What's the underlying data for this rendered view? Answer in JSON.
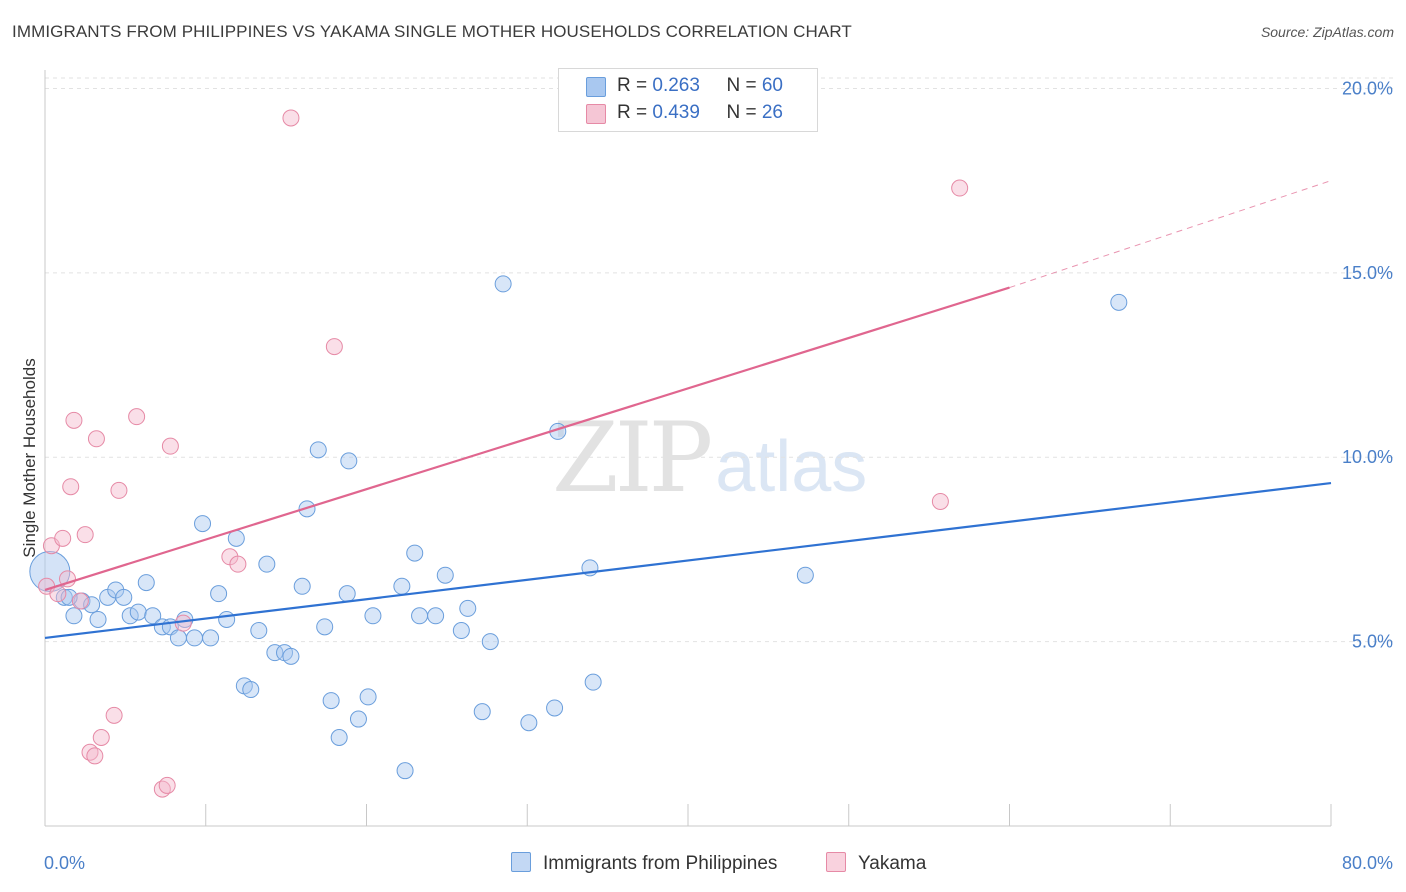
{
  "header": {
    "title": "IMMIGRANTS FROM PHILIPPINES VS YAKAMA SINGLE MOTHER HOUSEHOLDS CORRELATION CHART",
    "source": "Source: ZipAtlas.com"
  },
  "legend": {
    "rows": [
      {
        "r_label": "R = ",
        "r_value": "0.263",
        "n_label": "N = ",
        "n_value": "60",
        "color": "#a9c8f0"
      },
      {
        "r_label": "R = ",
        "r_value": "0.439",
        "n_label": "N = ",
        "n_value": "26",
        "color": "#f5b8cb"
      }
    ]
  },
  "watermark": {
    "zip": "ZIP",
    "atlas": "atlas"
  },
  "chart_data": {
    "type": "scatter",
    "title": "IMMIGRANTS FROM PHILIPPINES VS YAKAMA SINGLE MOTHER HOUSEHOLDS CORRELATION CHART",
    "ylabel": "Single Mother Households",
    "xlabel": "",
    "xlim": [
      0,
      80
    ],
    "ylim": [
      0,
      20.5
    ],
    "x_tick_labels": [
      "0.0%",
      "80.0%"
    ],
    "y_ticks": [
      {
        "value": 5,
        "label": "5.0%"
      },
      {
        "value": 10,
        "label": "10.0%"
      },
      {
        "value": 15,
        "label": "15.0%"
      },
      {
        "value": 20,
        "label": "20.0%"
      }
    ],
    "grid": true,
    "legend_position": "top-center",
    "series": [
      {
        "name": "Immigrants from Philippines",
        "color": "#a9c8f0",
        "stroke": "#6a9edc",
        "line_color": "#2f72d2",
        "trend": [
          [
            0,
            5.1
          ],
          [
            80,
            9.3
          ]
        ],
        "points": [
          [
            0.3,
            6.9
          ],
          [
            1.2,
            6.2
          ],
          [
            1.8,
            5.7
          ],
          [
            2.3,
            6.1
          ],
          [
            2.9,
            6.0
          ],
          [
            3.3,
            5.6
          ],
          [
            3.9,
            6.2
          ],
          [
            4.4,
            6.4
          ],
          [
            4.9,
            6.2
          ],
          [
            5.3,
            5.7
          ],
          [
            5.8,
            5.8
          ],
          [
            6.3,
            6.6
          ],
          [
            6.7,
            5.7
          ],
          [
            7.3,
            5.4
          ],
          [
            7.8,
            5.4
          ],
          [
            8.3,
            5.1
          ],
          [
            8.7,
            5.6
          ],
          [
            9.3,
            5.1
          ],
          [
            9.8,
            8.2
          ],
          [
            10.3,
            5.1
          ],
          [
            10.8,
            6.3
          ],
          [
            11.3,
            5.6
          ],
          [
            11.9,
            7.8
          ],
          [
            12.4,
            3.8
          ],
          [
            12.8,
            3.7
          ],
          [
            13.3,
            5.3
          ],
          [
            13.8,
            7.1
          ],
          [
            14.3,
            4.7
          ],
          [
            14.9,
            4.7
          ],
          [
            15.3,
            4.6
          ],
          [
            16.0,
            6.5
          ],
          [
            16.3,
            8.6
          ],
          [
            17.0,
            10.2
          ],
          [
            17.4,
            5.4
          ],
          [
            17.8,
            3.4
          ],
          [
            18.3,
            2.4
          ],
          [
            18.8,
            6.3
          ],
          [
            18.9,
            9.9
          ],
          [
            19.5,
            2.9
          ],
          [
            20.1,
            3.5
          ],
          [
            20.4,
            5.7
          ],
          [
            22.2,
            6.5
          ],
          [
            22.4,
            1.5
          ],
          [
            23.0,
            7.4
          ],
          [
            23.3,
            5.7
          ],
          [
            24.3,
            5.7
          ],
          [
            24.9,
            6.8
          ],
          [
            25.9,
            5.3
          ],
          [
            26.3,
            5.9
          ],
          [
            27.2,
            3.1
          ],
          [
            27.7,
            5.0
          ],
          [
            28.5,
            14.7
          ],
          [
            30.1,
            2.8
          ],
          [
            31.7,
            3.2
          ],
          [
            31.9,
            10.7
          ],
          [
            33.9,
            7.0
          ],
          [
            34.1,
            3.9
          ],
          [
            47.3,
            6.8
          ],
          [
            66.8,
            14.2
          ],
          [
            1.5,
            6.2
          ]
        ]
      },
      {
        "name": "Yakama",
        "color": "#f5b8cb",
        "stroke": "#e68aa6",
        "line_color": "#e0668f",
        "trend": [
          [
            0,
            6.4
          ],
          [
            60,
            14.6
          ]
        ],
        "trend_dashed": [
          [
            60,
            14.6
          ],
          [
            80,
            17.5
          ]
        ],
        "points": [
          [
            0.1,
            6.5
          ],
          [
            0.4,
            7.6
          ],
          [
            0.8,
            6.3
          ],
          [
            1.1,
            7.8
          ],
          [
            1.4,
            6.7
          ],
          [
            1.6,
            9.2
          ],
          [
            1.8,
            11.0
          ],
          [
            2.2,
            6.1
          ],
          [
            2.5,
            7.9
          ],
          [
            2.8,
            2.0
          ],
          [
            3.1,
            1.9
          ],
          [
            3.2,
            10.5
          ],
          [
            3.5,
            2.4
          ],
          [
            4.3,
            3.0
          ],
          [
            4.6,
            9.1
          ],
          [
            5.7,
            11.1
          ],
          [
            7.3,
            1.0
          ],
          [
            7.6,
            1.1
          ],
          [
            7.8,
            10.3
          ],
          [
            8.6,
            5.5
          ],
          [
            11.5,
            7.3
          ],
          [
            12.0,
            7.1
          ],
          [
            15.3,
            19.2
          ],
          [
            18.0,
            13.0
          ],
          [
            55.7,
            8.8
          ],
          [
            56.9,
            17.3
          ]
        ]
      }
    ]
  }
}
